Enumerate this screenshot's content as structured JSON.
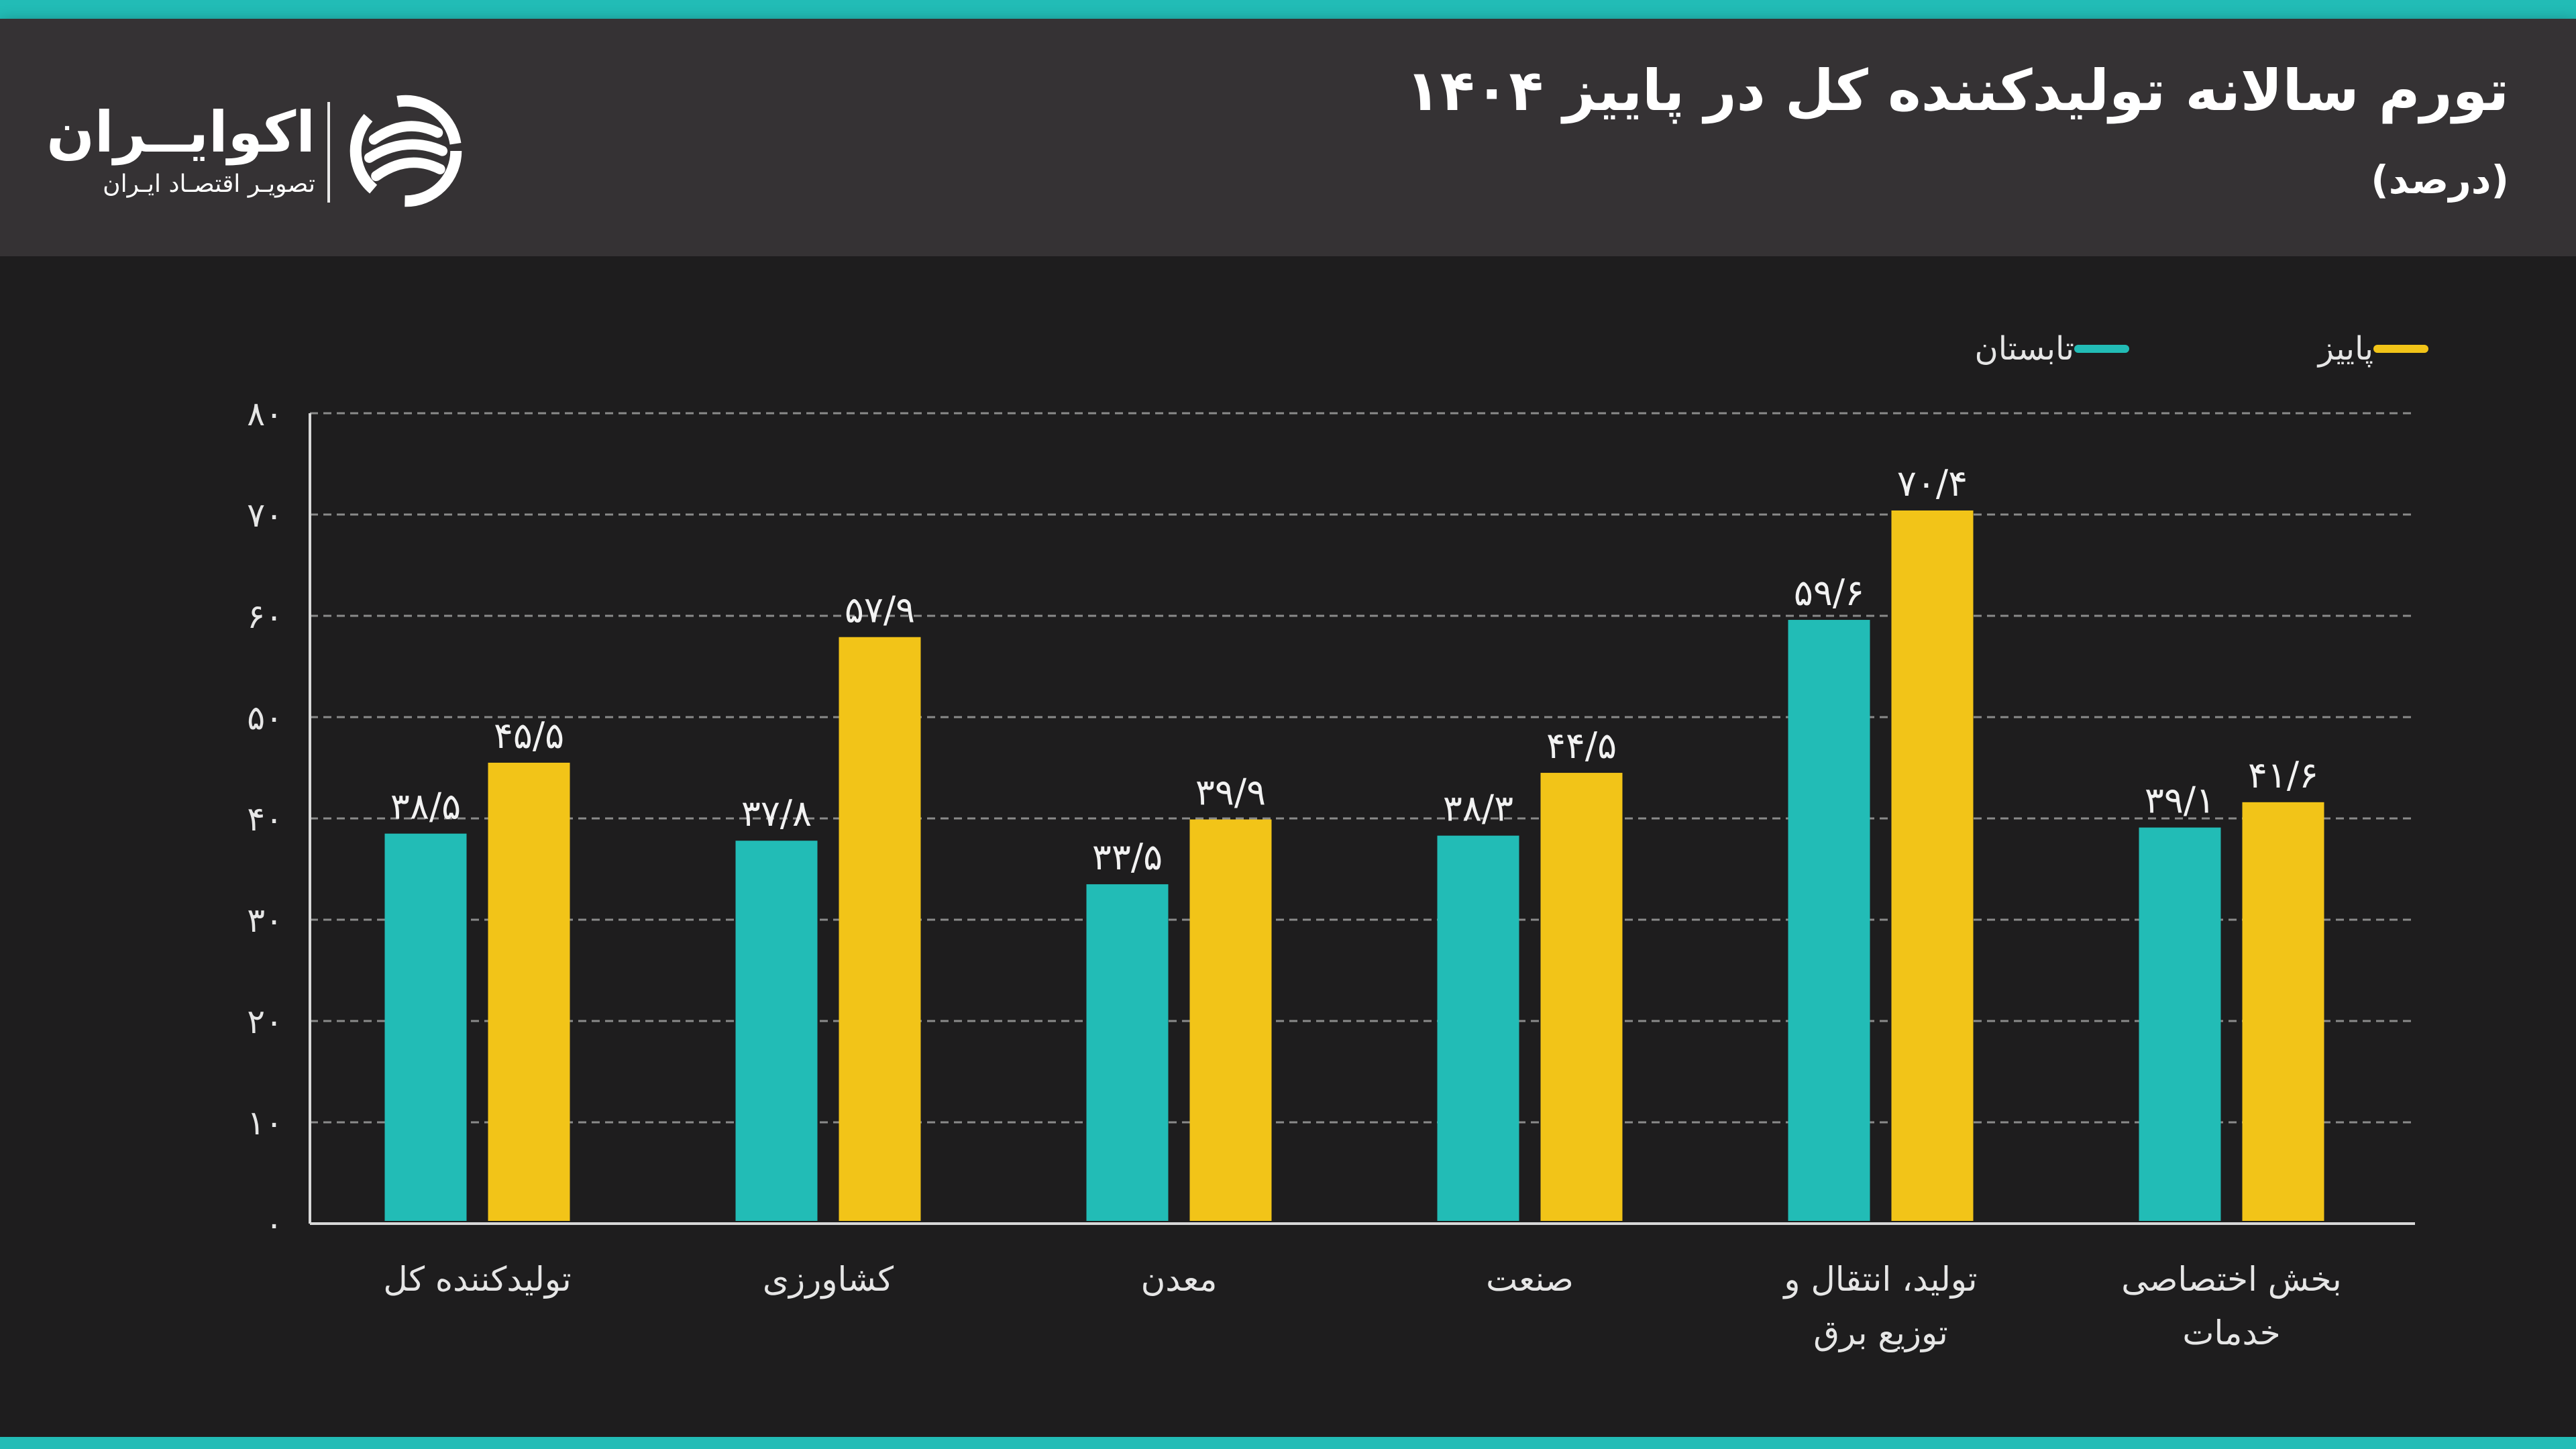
{
  "header": {
    "title": "تورم سالانه تولیدکننده کل در پاییز ۱۴۰۴",
    "subtitle": "(درصد)"
  },
  "brand": {
    "name": "اکوایــران",
    "tagline": "تصویـر اقتصـاد ایـران"
  },
  "colors": {
    "teal": "#22bcb6",
    "yellow": "#f2c418",
    "grid": "#8a8a8a",
    "text": "#e6e6e6"
  },
  "legend": {
    "items": [
      {
        "label": "پاییز",
        "color": "#f2c418"
      },
      {
        "label": "تابستان",
        "color": "#22bcb6"
      }
    ]
  },
  "chart_data": {
    "type": "bar",
    "title": "تورم سالانه تولیدکننده کل در پاییز ۱۴۰۴",
    "subtitle": "(درصد)",
    "xlabel": "",
    "ylabel": "",
    "ylim": [
      0,
      80
    ],
    "grid": true,
    "legend_position": "top-right",
    "y_ticks": [
      0,
      10,
      20,
      30,
      40,
      50,
      60,
      70,
      80
    ],
    "y_tick_labels": [
      "۰",
      "۱۰",
      "۲۰",
      "۳۰",
      "۴۰",
      "۵۰",
      "۶۰",
      "۷۰",
      "۸۰"
    ],
    "categories": [
      [
        "تولیدکننده کل"
      ],
      [
        "کشاورزی"
      ],
      [
        "معدن"
      ],
      [
        "صنعت"
      ],
      [
        "تولید، انتقال و",
        "توزیع برق"
      ],
      [
        "بخش اختصاصی",
        "خدمات"
      ]
    ],
    "series": [
      {
        "name": "تابستان",
        "color": "#22bcb6",
        "values": [
          38.5,
          37.8,
          33.5,
          38.3,
          59.6,
          39.1
        ],
        "labels": [
          "۳۸/۵",
          "۳۷/۸",
          "۳۳/۵",
          "۳۸/۳",
          "۵۹/۶",
          "۳۹/۱"
        ]
      },
      {
        "name": "پاییز",
        "color": "#f2c418",
        "values": [
          45.5,
          57.9,
          39.9,
          44.5,
          70.4,
          41.6
        ],
        "labels": [
          "۴۵/۵",
          "۵۷/۹",
          "۳۹/۹",
          "۴۴/۵",
          "۷۰/۴",
          "۴۱/۶"
        ]
      }
    ]
  }
}
